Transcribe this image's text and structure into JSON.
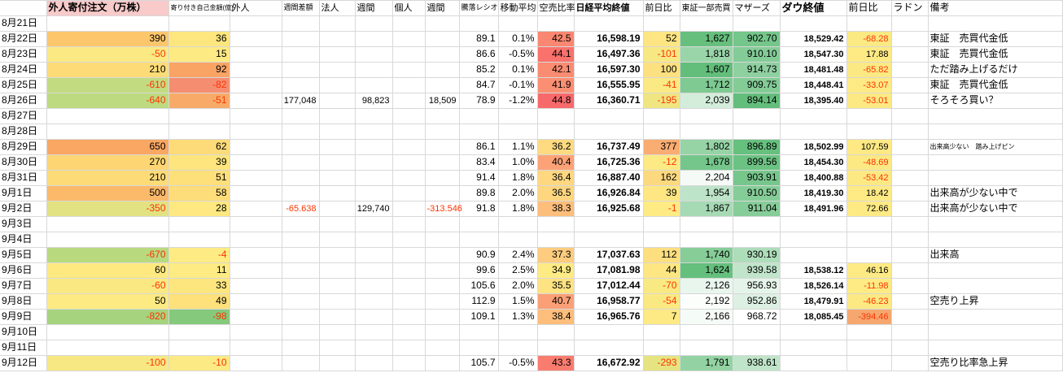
{
  "meta": {
    "negative_color": "#ff3300",
    "gridline_color": "#d8d8d8",
    "header_pink": "#f8caca"
  },
  "columns": [
    {
      "key": "date",
      "label": "",
      "width": 57,
      "align": "left",
      "fs": 12
    },
    {
      "key": "gaijin_order",
      "label": "外人寄付注文（万株）",
      "width": 150,
      "align": "right",
      "fs": 12,
      "neg_red": true,
      "header": {
        "bg": "#f8caca",
        "bold": true,
        "fs": 12
      }
    },
    {
      "key": "yoritsuki_jiko",
      "label": "寄り付き自己金額(億)",
      "width": 75,
      "align": "right",
      "fs": 12,
      "neg_red": true,
      "header": {
        "fs": 8
      }
    },
    {
      "key": "gaijin_week",
      "label": "外人",
      "width": 64,
      "align": "right",
      "fs": 11,
      "header": {
        "fs": 11
      }
    },
    {
      "key": "week_diff",
      "label": "週間差額",
      "width": 46,
      "align": "right",
      "fs": 11,
      "neg_red": true,
      "header": {
        "fs": 9
      }
    },
    {
      "key": "hojin",
      "label": "法人",
      "width": 44,
      "align": "right",
      "fs": 11,
      "header": {
        "fs": 11
      }
    },
    {
      "key": "hojin_week",
      "label": "週間",
      "width": 46,
      "align": "right",
      "fs": 11,
      "header": {
        "fs": 11
      }
    },
    {
      "key": "kojin",
      "label": "個人",
      "width": 40,
      "align": "right",
      "fs": 11,
      "header": {
        "fs": 11
      }
    },
    {
      "key": "kojin_week",
      "label": "週間",
      "width": 42,
      "align": "right",
      "fs": 11,
      "neg_red": true,
      "header": {
        "fs": 11
      }
    },
    {
      "key": "toraku_ratio",
      "label": "騰落レシオ",
      "width": 48,
      "align": "right",
      "fs": 12,
      "header": {
        "fs": 9
      }
    },
    {
      "key": "moving_avg",
      "label": "移動平均",
      "width": 48,
      "align": "right",
      "fs": 12,
      "header": {
        "fs": 11
      }
    },
    {
      "key": "karauri_ratio",
      "label": "空売比率",
      "width": 45,
      "align": "right",
      "fs": 12,
      "header": {
        "fs": 11
      }
    },
    {
      "key": "nikkei_close",
      "label": "日経平均終値",
      "width": 85,
      "align": "right",
      "fs": 12,
      "bold": true,
      "header": {
        "fs": 11,
        "bold": true
      }
    },
    {
      "key": "nikkei_diff",
      "label": "前日比",
      "width": 45,
      "align": "right",
      "fs": 12,
      "neg_red": true,
      "header": {
        "fs": 11
      }
    },
    {
      "key": "tosho_volume",
      "label": "東証一部売買",
      "width": 65,
      "align": "right",
      "fs": 12,
      "header": {
        "fs": 10
      }
    },
    {
      "key": "mothers",
      "label": "マザーズ",
      "width": 58,
      "align": "right",
      "fs": 12,
      "header": {
        "fs": 11
      }
    },
    {
      "key": "dow_close",
      "label": "ダウ終値",
      "width": 82,
      "align": "right",
      "fs": 11,
      "bold": true,
      "header": {
        "fs": 13,
        "bold": true
      }
    },
    {
      "key": "dow_diff",
      "label": "前日比",
      "width": 55,
      "align": "right",
      "fs": 11,
      "neg_red": true,
      "header": {
        "fs": 12
      }
    },
    {
      "key": "radon",
      "label": "ラドン",
      "width": 45,
      "align": "left",
      "fs": 12,
      "header": {
        "fs": 12
      }
    },
    {
      "key": "biko",
      "label": "備考",
      "width": 165,
      "align": "left",
      "fs": 12,
      "header": {
        "fs": 12
      }
    }
  ],
  "rows": [
    {
      "date": "8月21日",
      "cells": {}
    },
    {
      "date": "8月22日",
      "cells": {
        "gaijin_order": {
          "v": "390",
          "bg": "#FCC76C"
        },
        "yoritsuki_jiko": {
          "v": "36",
          "bg": "#FEE67E"
        },
        "toraku_ratio": "89.1",
        "moving_avg": "0.1%",
        "karauri_ratio": {
          "v": "42.5",
          "bg": "#FA8771"
        },
        "nikkei_close": "16,598.19",
        "nikkei_diff": {
          "v": "52",
          "bg": "#FEE583"
        },
        "tosho_volume": {
          "v": "1,627",
          "bg": "#66BF7D"
        },
        "mothers": {
          "v": "902.70",
          "bg": "#74C68A"
        },
        "dow_close": "18,529.42",
        "dow_diff": {
          "v": "-68.28",
          "bg": "#FBE983"
        },
        "biko": "東証　売買代金低"
      }
    },
    {
      "date": "8月23日",
      "cells": {
        "gaijin_order": {
          "v": "-50",
          "bg": "#FBE983"
        },
        "yoritsuki_jiko": {
          "v": "15",
          "bg": "#FEEA83"
        },
        "toraku_ratio": "86.6",
        "moving_avg": "-0.5%",
        "karauri_ratio": {
          "v": "44.1",
          "bg": "#F9726C"
        },
        "nikkei_close": "16,497.36",
        "nikkei_diff": {
          "v": "-101",
          "bg": "#F7E883"
        },
        "tosho_volume": {
          "v": "1,818",
          "bg": "#9AD5AA"
        },
        "mothers": {
          "v": "910.10",
          "bg": "#84CC97"
        },
        "dow_close": "18,547.30",
        "dow_diff": {
          "v": "17.88",
          "bg": "#FEEA84"
        },
        "biko": "東証　売買代金低"
      }
    },
    {
      "date": "8月24日",
      "cells": {
        "gaijin_order": {
          "v": "210",
          "bg": "#FDDC77"
        },
        "yoritsuki_jiko": {
          "v": "92",
          "bg": "#F9A465"
        },
        "toraku_ratio": "85.2",
        "moving_avg": "0.1%",
        "karauri_ratio": {
          "v": "42.1",
          "bg": "#FA8C72"
        },
        "nikkei_close": "16,597.30",
        "nikkei_diff": {
          "v": "100",
          "bg": "#FDE080"
        },
        "tosho_volume": {
          "v": "1,607",
          "bg": "#63BE7B"
        },
        "mothers": {
          "v": "914.73",
          "bg": "#8ED0A0"
        },
        "dow_close": "18,481.48",
        "dow_diff": {
          "v": "-65.82",
          "bg": "#FBE983"
        },
        "biko": "ただ踏み上げるだけ"
      }
    },
    {
      "date": "8月25日",
      "cells": {
        "gaijin_order": {
          "v": "-610",
          "bg": "#C3DB80"
        },
        "yoritsuki_jiko": {
          "v": "-82",
          "bg": "#F58E70"
        },
        "toraku_ratio": "84.7",
        "moving_avg": "-0.1%",
        "karauri_ratio": {
          "v": "41.9",
          "bg": "#FA8F73"
        },
        "nikkei_close": "16,555.95",
        "nikkei_diff": {
          "v": "-41",
          "bg": "#FBEA84"
        },
        "tosho_volume": {
          "v": "1,712",
          "bg": "#7ECA92"
        },
        "mothers": {
          "v": "909.75",
          "bg": "#83CC96"
        },
        "dow_close": "18,448.41",
        "dow_diff": {
          "v": "-33.07",
          "bg": "#FDEA84"
        },
        "biko": "東証　売買代金低"
      }
    },
    {
      "date": "8月26日",
      "cells": {
        "gaijin_order": {
          "v": "-640",
          "bg": "#BEDA80"
        },
        "yoritsuki_jiko": {
          "v": "-51",
          "bg": "#F8AB69"
        },
        "week_diff": "177,048",
        "hojin_week": "98,823",
        "kojin_week": "18,509",
        "toraku_ratio": "78.9",
        "moving_avg": "-1.2%",
        "karauri_ratio": {
          "v": "44.8",
          "bg": "#F8696B"
        },
        "nikkei_close": "16,360.71",
        "nikkei_diff": {
          "v": "-195",
          "bg": "#EFE682"
        },
        "tosho_volume": {
          "v": "2,039",
          "bg": "#D4EDDB"
        },
        "mothers": {
          "v": "894.14",
          "bg": "#63BE7B"
        },
        "dow_close": "18,395.40",
        "dow_diff": {
          "v": "-53.01",
          "bg": "#FCE983"
        },
        "biko": "そろそろ買い？"
      }
    },
    {
      "date": "8月27日",
      "cells": {}
    },
    {
      "date": "8月28日",
      "cells": {}
    },
    {
      "date": "8月29日",
      "cells": {
        "gaijin_order": {
          "v": "650",
          "bg": "#F9A763"
        },
        "yoritsuki_jiko": {
          "v": "62",
          "bg": "#FDDB79"
        },
        "toraku_ratio": "86.1",
        "moving_avg": "1.1%",
        "karauri_ratio": {
          "v": "36.2",
          "bg": "#FEDA81"
        },
        "nikkei_close": "16,737.49",
        "nikkei_diff": {
          "v": "377",
          "bg": "#FAAD72"
        },
        "tosho_volume": {
          "v": "1,802",
          "bg": "#96D4A6"
        },
        "mothers": {
          "v": "896.89",
          "bg": "#66C07E"
        },
        "dow_close": "18,502.99",
        "dow_diff": {
          "v": "107.59",
          "bg": "#FEE985"
        },
        "biko": {
          "v": "出来高少ない　踏み上げピン",
          "fs": 8
        }
      }
    },
    {
      "date": "8月30日",
      "cells": {
        "gaijin_order": {
          "v": "270",
          "bg": "#FDD673"
        },
        "yoritsuki_jiko": {
          "v": "39",
          "bg": "#FEE57D"
        },
        "toraku_ratio": "83.4",
        "moving_avg": "1.0%",
        "karauri_ratio": {
          "v": "40.4",
          "bg": "#FBA377"
        },
        "nikkei_close": "16,725.36",
        "nikkei_diff": {
          "v": "-12",
          "bg": "#FDEA84"
        },
        "tosho_volume": {
          "v": "1,678",
          "bg": "#75C68B"
        },
        "mothers": {
          "v": "899.56",
          "bg": "#6CC283"
        },
        "dow_close": "18,454.30",
        "dow_diff": {
          "v": "-48.69",
          "bg": "#FCE983"
        }
      }
    },
    {
      "date": "8月31日",
      "cells": {
        "gaijin_order": {
          "v": "210",
          "bg": "#FDDC77"
        },
        "yoritsuki_jiko": {
          "v": "51",
          "bg": "#FEE07B"
        },
        "toraku_ratio": "91.4",
        "moving_avg": "1.8%",
        "karauri_ratio": {
          "v": "36.4",
          "bg": "#FED780"
        },
        "nikkei_close": "16,887.40",
        "nikkei_diff": {
          "v": "162",
          "bg": "#FCD97E"
        },
        "tosho_volume": {
          "v": "2,204",
          "bg": "#F5FAF7"
        },
        "mothers": {
          "v": "903.91",
          "bg": "#77C78C"
        },
        "dow_close": "18,400.88",
        "dow_diff": {
          "v": "-53.42",
          "bg": "#FCE983"
        }
      }
    },
    {
      "date": "9月1日",
      "cells": {
        "gaijin_order": {
          "v": "500",
          "bg": "#FBB96A"
        },
        "yoritsuki_jiko": {
          "v": "58",
          "bg": "#FDDD7A"
        },
        "toraku_ratio": "89.8",
        "moving_avg": "2.0%",
        "karauri_ratio": {
          "v": "36.5",
          "bg": "#FED680"
        },
        "nikkei_close": "16,926.84",
        "nikkei_diff": {
          "v": "39",
          "bg": "#FEE783"
        },
        "tosho_volume": {
          "v": "1,954",
          "bg": "#BDE4C8"
        },
        "mothers": {
          "v": "910.50",
          "bg": "#85CD98"
        },
        "dow_close": "18,419.30",
        "dow_diff": {
          "v": "18.42",
          "bg": "#FEEA84"
        },
        "biko": "出来高が少ない中で"
      }
    },
    {
      "date": "9月2日",
      "cells": {
        "gaijin_order": {
          "v": "-350",
          "bg": "#E2E282"
        },
        "yoritsuki_jiko": {
          "v": "28",
          "bg": "#FEE881"
        },
        "week_diff": "-65.638",
        "hojin_week": "129,740",
        "kojin_week": "-313.546",
        "toraku_ratio": "91.8",
        "moving_avg": "1.8%",
        "karauri_ratio": {
          "v": "38.3",
          "bg": "#FDBE7B"
        },
        "nikkei_close": "16,925.68",
        "nikkei_diff": {
          "v": "-1",
          "bg": "#FEEB84"
        },
        "tosho_volume": {
          "v": "1,867",
          "bg": "#A6DAB4"
        },
        "mothers": {
          "v": "911.04",
          "bg": "#86CD99"
        },
        "dow_close": "18,491.96",
        "dow_diff": {
          "v": "72.66",
          "bg": "#FEEA84"
        },
        "biko": "出来高が少ない中で"
      }
    },
    {
      "date": "9月3日",
      "cells": {}
    },
    {
      "date": "9月4日",
      "cells": {}
    },
    {
      "date": "9月5日",
      "cells": {
        "gaijin_order": {
          "v": "-670",
          "bg": "#B9D97F"
        },
        "yoritsuki_jiko": {
          "v": "-4",
          "bg": "#FEEB84"
        },
        "toraku_ratio": "90.9",
        "moving_avg": "2.4%",
        "karauri_ratio": {
          "v": "37.3",
          "bg": "#FECC7E"
        },
        "nikkei_close": "17,037.63",
        "nikkei_diff": {
          "v": "112",
          "bg": "#FDDF80"
        },
        "tosho_volume": {
          "v": "1,740",
          "bg": "#86CD98"
        },
        "mothers": {
          "v": "930.19",
          "bg": "#AEDDBA"
        },
        "biko": "出来高"
      }
    },
    {
      "date": "9月6日",
      "cells": {
        "gaijin_order": {
          "v": "60",
          "bg": "#FEE981"
        },
        "yoritsuki_jiko": {
          "v": "11",
          "bg": "#FEEB83"
        },
        "toraku_ratio": "99.6",
        "moving_avg": "2.5%",
        "karauri_ratio": {
          "v": "34.9",
          "bg": "#FFEB84"
        },
        "nikkei_close": "17,081.98",
        "nikkei_diff": {
          "v": "44",
          "bg": "#FEE683"
        },
        "tosho_volume": {
          "v": "1,624",
          "bg": "#65BF7D"
        },
        "mothers": {
          "v": "939.58",
          "bg": "#C1E5CB"
        },
        "dow_close": "18,538.12",
        "dow_diff": {
          "v": "46.16",
          "bg": "#FEEA84"
        }
      }
    },
    {
      "date": "9月7日",
      "cells": {
        "gaijin_order": {
          "v": "-60",
          "bg": "#FAE983"
        },
        "yoritsuki_jiko": {
          "v": "33",
          "bg": "#FEE67E"
        },
        "toraku_ratio": "105.6",
        "moving_avg": "2.0%",
        "karauri_ratio": {
          "v": "35.5",
          "bg": "#FFE382"
        },
        "nikkei_close": "17,012.44",
        "nikkei_diff": {
          "v": "-70",
          "bg": "#F9E983"
        },
        "tosho_volume": {
          "v": "2,126",
          "bg": "#E9F6ED"
        },
        "mothers": {
          "v": "956.93",
          "bg": "#E5F4EA"
        },
        "dow_close": "18,526.14",
        "dow_diff": {
          "v": "-11.98",
          "bg": "#FEEB84"
        }
      }
    },
    {
      "date": "9月8日",
      "cells": {
        "gaijin_order": {
          "v": "50",
          "bg": "#FEEA82"
        },
        "yoritsuki_jiko": {
          "v": "49",
          "bg": "#FEE17B"
        },
        "toraku_ratio": "112.9",
        "moving_avg": "1.5%",
        "karauri_ratio": {
          "v": "40.7",
          "bg": "#FBA076"
        },
        "nikkei_close": "16,958.77",
        "nikkei_diff": {
          "v": "-54",
          "bg": "#FAE983"
        },
        "tosho_volume": {
          "v": "2,192",
          "bg": "#FCFEFC"
        },
        "mothers": {
          "v": "952.86",
          "bg": "#DDF0E3"
        },
        "dow_close": "18,479.91",
        "dow_diff": {
          "v": "-46.23",
          "bg": "#FCE983"
        },
        "biko": "空売り上昇"
      }
    },
    {
      "date": "9月9日",
      "cells": {
        "gaijin_order": {
          "v": "-820",
          "bg": "#A5D37E"
        },
        "yoritsuki_jiko": {
          "v": "-98",
          "bg": "#84C97C"
        },
        "toraku_ratio": "109.1",
        "moving_avg": "1.3%",
        "karauri_ratio": {
          "v": "38.4",
          "bg": "#FDBD7B"
        },
        "nikkei_close": "16,965.76",
        "nikkei_diff": {
          "v": "7",
          "bg": "#FEEA84"
        },
        "tosho_volume": {
          "v": "2,166",
          "bg": "#F5FBF7"
        },
        "mothers": {
          "v": "968.72",
          "bg": "#FEFFFE"
        },
        "dow_close": "18,085.45",
        "dow_diff": {
          "v": "-394.46",
          "bg": "#F5A76F"
        }
      }
    },
    {
      "date": "9月10日",
      "cells": {}
    },
    {
      "date": "9月11日",
      "cells": {}
    },
    {
      "date": "9月12日",
      "cells": {
        "gaijin_order": {
          "v": "-100",
          "bg": "#F7E883"
        },
        "yoritsuki_jiko": {
          "v": "-10",
          "bg": "#FCEA84"
        },
        "toraku_ratio": "105.7",
        "moving_avg": "-0.5%",
        "karauri_ratio": {
          "v": "43.3",
          "bg": "#F97C6F"
        },
        "nikkei_close": "16,672.92",
        "nikkei_diff": {
          "v": "-293",
          "bg": "#E6E481"
        },
        "tosho_volume": {
          "v": "1,791",
          "bg": "#93D3A3"
        },
        "mothers": {
          "v": "938.61",
          "bg": "#BFE4C9"
        },
        "biko": "空売り比率急上昇"
      }
    }
  ]
}
